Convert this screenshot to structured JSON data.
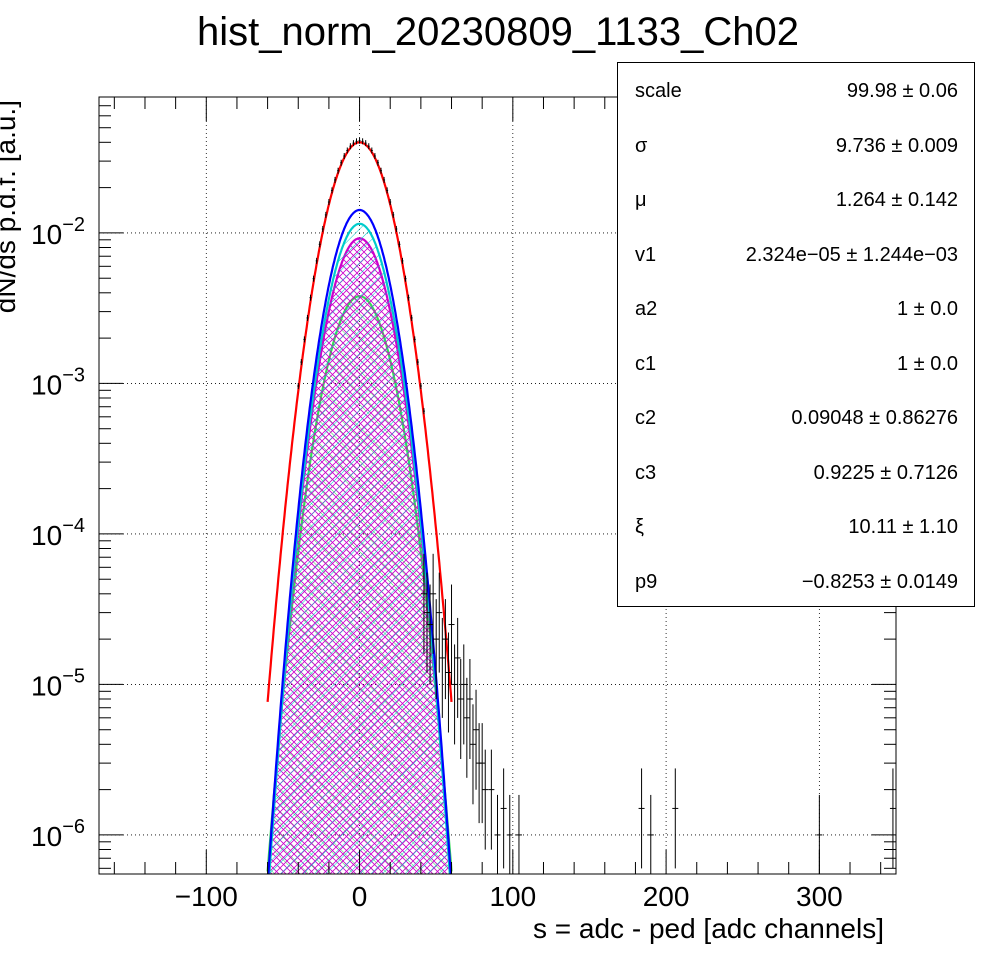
{
  "chart_data": {
    "type": "line",
    "title": "hist_norm_20230809_1133_Ch02",
    "xlabel": "s = adc - ped [adc channels]",
    "ylabel": "dN/ds p.d.f. [a.u.]",
    "xlim": [
      -170,
      350
    ],
    "ylog": true,
    "ylim": [
      5.5e-07,
      0.08
    ],
    "grid": true,
    "x_ticks": [
      -100,
      0,
      100,
      200,
      300
    ],
    "x_tick_labels": [
      "−100",
      "0",
      "100",
      "200",
      "300"
    ],
    "y_ticks": [
      1e-06,
      1e-05,
      0.0001,
      0.001,
      0.01
    ],
    "y_tick_labels": [
      {
        "base": "10",
        "exp": "−6"
      },
      {
        "base": "10",
        "exp": "−5"
      },
      {
        "base": "10",
        "exp": "−4"
      },
      {
        "base": "10",
        "exp": "−3"
      },
      {
        "base": "10",
        "exp": "−2"
      }
    ],
    "curves": [
      {
        "color": "#ff0000",
        "peak": 0.04,
        "mu": 0,
        "sigma": 14.5,
        "fill": "none"
      },
      {
        "color": "#0000ff",
        "peak": 0.0142,
        "mu": 0,
        "sigma": 13.2,
        "fill": "none"
      },
      {
        "color": "#00cccc",
        "peak": 0.0115,
        "mu": 0,
        "sigma": 13.2,
        "fill": "hatch-cyan"
      },
      {
        "color": "#cc00cc",
        "peak": 0.0092,
        "mu": 0,
        "sigma": 13.4,
        "fill": "hatch-magenta"
      },
      {
        "color": "#33dd55",
        "peak": 0.0038,
        "mu": 0,
        "sigma": 14.3,
        "fill": "hatch-green"
      }
    ],
    "data_points": {
      "core": {
        "peak": 0.041,
        "mu": 0,
        "sigma": 14.6,
        "from": -40,
        "to": 42,
        "step": 2
      },
      "tail": [
        {
          "x": 42,
          "y": 4e-05
        },
        {
          "x": 44,
          "y": 3e-05
        },
        {
          "x": 46,
          "y": 2.5e-05
        },
        {
          "x": 48,
          "y": 4e-05
        },
        {
          "x": 50,
          "y": 2e-05
        },
        {
          "x": 52,
          "y": 3e-05
        },
        {
          "x": 54,
          "y": 1.5e-05
        },
        {
          "x": 56,
          "y": 2e-05
        },
        {
          "x": 58,
          "y": 1.2e-05
        },
        {
          "x": 60,
          "y": 2.5e-05
        },
        {
          "x": 62,
          "y": 1e-05
        },
        {
          "x": 64,
          "y": 1.5e-05
        },
        {
          "x": 66,
          "y": 8e-06
        },
        {
          "x": 68,
          "y": 1e-05
        },
        {
          "x": 70,
          "y": 6e-06
        },
        {
          "x": 72,
          "y": 8e-06
        },
        {
          "x": 74,
          "y": 4e-06
        },
        {
          "x": 76,
          "y": 5e-06
        },
        {
          "x": 78,
          "y": 3e-06
        },
        {
          "x": 80,
          "y": 3e-06
        },
        {
          "x": 82,
          "y": 2e-06
        },
        {
          "x": 86,
          "y": 2e-06
        },
        {
          "x": 90,
          "y": 1e-06
        },
        {
          "x": 94,
          "y": 1.5e-06
        },
        {
          "x": 98,
          "y": 1e-06
        },
        {
          "x": 104,
          "y": 1e-06
        },
        {
          "x": 184,
          "y": 1.5e-06
        },
        {
          "x": 190,
          "y": 1e-06
        },
        {
          "x": 206,
          "y": 1.5e-06
        },
        {
          "x": 300,
          "y": 1e-06
        },
        {
          "x": 348,
          "y": 1.5e-06
        }
      ]
    }
  },
  "stats": [
    {
      "name": "scale",
      "value": "99.98 ± 0.06"
    },
    {
      "name": "σ",
      "value": "9.736 ± 0.009"
    },
    {
      "name": "μ",
      "value": "1.264 ± 0.142"
    },
    {
      "name": "v1",
      "value": "2.324e−05 ± 1.244e−03"
    },
    {
      "name": "a2",
      "value": "1 ± 0.0"
    },
    {
      "name": "c1",
      "value": "1 ± 0.0"
    },
    {
      "name": "c2",
      "value": "0.09048 ± 0.86276"
    },
    {
      "name": "c3",
      "value": "0.9225 ± 0.7126"
    },
    {
      "name": "ξ",
      "value": "10.11 ± 1.10"
    },
    {
      "name": "p9",
      "value": "−0.8253 ± 0.0149"
    }
  ]
}
